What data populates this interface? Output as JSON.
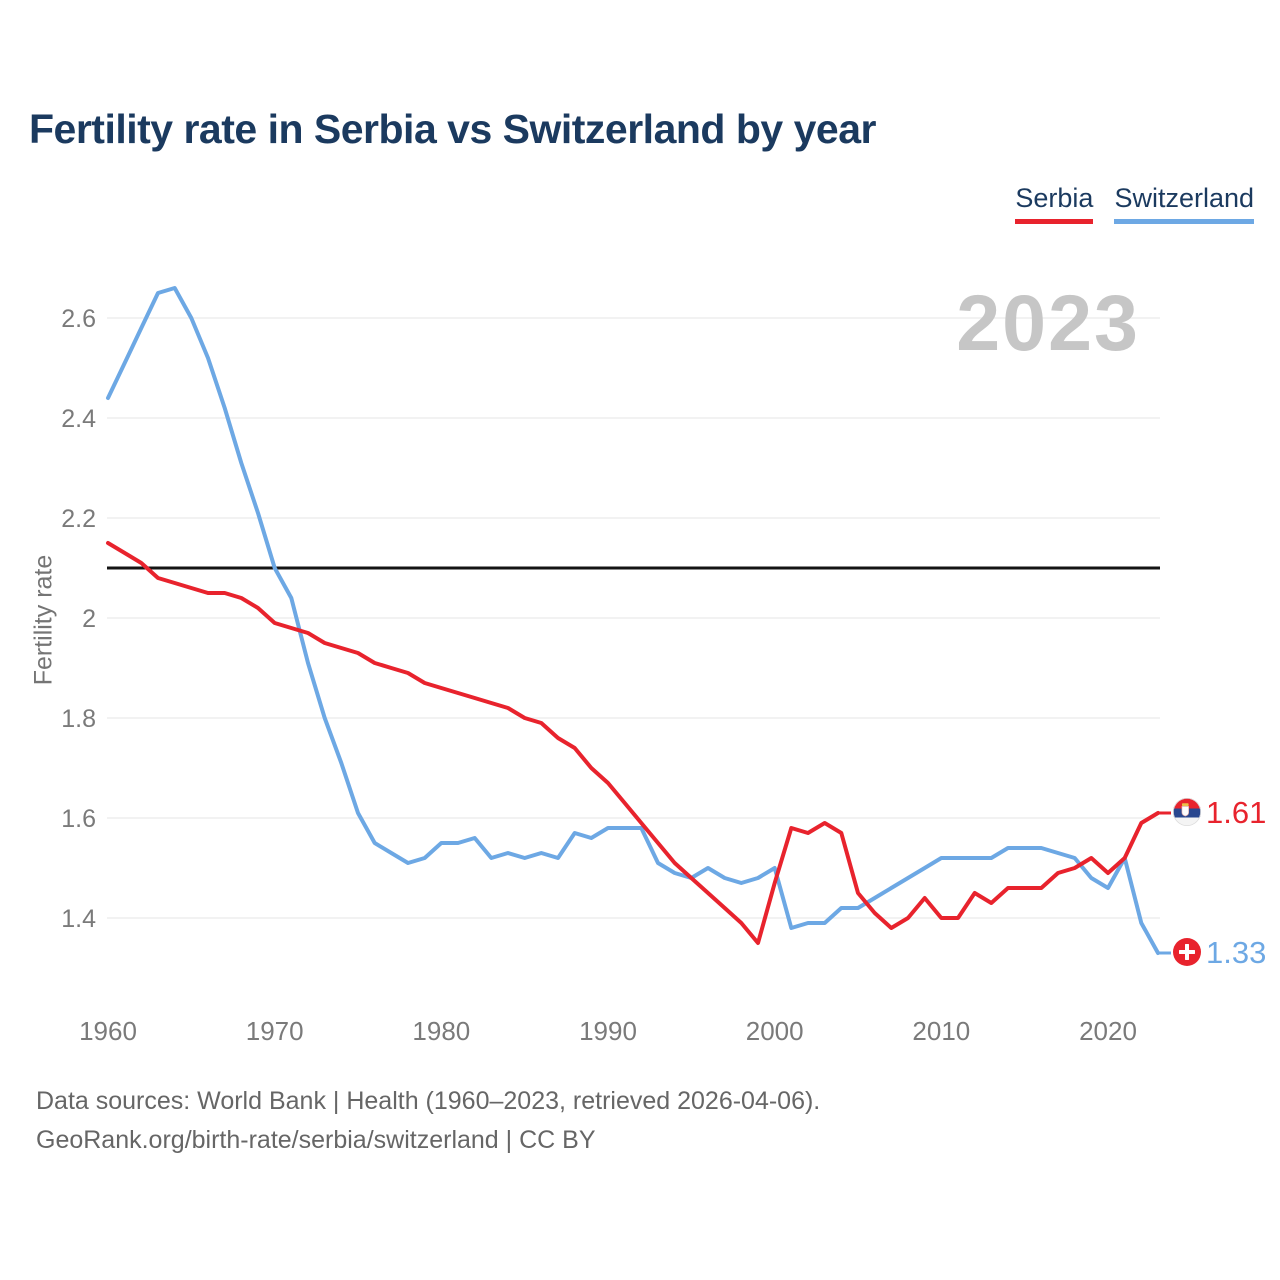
{
  "header": {
    "title": "Fertility rate in Serbia vs Switzerland by year"
  },
  "legend": {
    "items": [
      {
        "label": "Serbia"
      },
      {
        "label": "Switzerland"
      }
    ]
  },
  "watermark": "2023",
  "axes": {
    "y_label": "Fertility rate"
  },
  "end_labels": {
    "serbia": "1.61",
    "switzerland": "1.33"
  },
  "icons": {
    "serbia_flag": "serbia-flag-icon",
    "switzerland_flag": "switzerland-flag-icon"
  },
  "footer": {
    "line1": "Data sources: World Bank | Health (1960–2023, retrieved 2026-04-06).",
    "line2": "GeoRank.org/birth-rate/serbia/switzerland | CC BY"
  },
  "chart_data": {
    "type": "line",
    "title": "Fertility rate in Serbia vs Switzerland by year",
    "xlabel": "",
    "ylabel": "Fertility rate",
    "x_range": [
      1960,
      2023
    ],
    "ylim": [
      1.25,
      2.72
    ],
    "grid": true,
    "legend_position": "top-right",
    "y_ticks": [
      2.6,
      2.4,
      2.2,
      2,
      1.8,
      1.6,
      1.4
    ],
    "x_ticks": [
      1960,
      1970,
      1980,
      1990,
      2000,
      2010,
      2020
    ],
    "reference_line": {
      "value": 2.1,
      "color": "#141414"
    },
    "grid_color": "#ededed",
    "tick_color": "#7a7a7a",
    "x": [
      1960,
      1961,
      1962,
      1963,
      1964,
      1965,
      1966,
      1967,
      1968,
      1969,
      1970,
      1971,
      1972,
      1973,
      1974,
      1975,
      1976,
      1977,
      1978,
      1979,
      1980,
      1981,
      1982,
      1983,
      1984,
      1985,
      1986,
      1987,
      1988,
      1989,
      1990,
      1991,
      1992,
      1993,
      1994,
      1995,
      1996,
      1997,
      1998,
      1999,
      2000,
      2001,
      2002,
      2003,
      2004,
      2005,
      2006,
      2007,
      2008,
      2009,
      2010,
      2011,
      2012,
      2013,
      2014,
      2015,
      2016,
      2017,
      2018,
      2019,
      2020,
      2021,
      2022,
      2023
    ],
    "series": [
      {
        "name": "Serbia",
        "color": "#e8232d",
        "end_value_label": "1.61",
        "values": [
          2.15,
          2.13,
          2.11,
          2.08,
          2.07,
          2.06,
          2.05,
          2.05,
          2.04,
          2.02,
          1.99,
          1.98,
          1.97,
          1.95,
          1.94,
          1.93,
          1.91,
          1.9,
          1.89,
          1.87,
          1.86,
          1.85,
          1.84,
          1.83,
          1.82,
          1.8,
          1.79,
          1.76,
          1.74,
          1.7,
          1.67,
          1.63,
          1.59,
          1.55,
          1.51,
          1.48,
          1.45,
          1.42,
          1.39,
          1.35,
          1.47,
          1.58,
          1.57,
          1.59,
          1.57,
          1.45,
          1.41,
          1.38,
          1.4,
          1.44,
          1.4,
          1.4,
          1.45,
          1.43,
          1.46,
          1.46,
          1.46,
          1.49,
          1.5,
          1.52,
          1.49,
          1.52,
          1.59,
          1.61
        ]
      },
      {
        "name": "Switzerland",
        "color": "#6da8e4",
        "end_value_label": "1.33",
        "values": [
          2.44,
          2.51,
          2.58,
          2.65,
          2.66,
          2.6,
          2.52,
          2.42,
          2.31,
          2.21,
          2.1,
          2.04,
          1.91,
          1.8,
          1.71,
          1.61,
          1.55,
          1.53,
          1.51,
          1.52,
          1.55,
          1.55,
          1.56,
          1.52,
          1.53,
          1.52,
          1.53,
          1.52,
          1.57,
          1.56,
          1.58,
          1.58,
          1.58,
          1.51,
          1.49,
          1.48,
          1.5,
          1.48,
          1.47,
          1.48,
          1.5,
          1.38,
          1.39,
          1.39,
          1.42,
          1.42,
          1.44,
          1.46,
          1.48,
          1.5,
          1.52,
          1.52,
          1.52,
          1.52,
          1.54,
          1.54,
          1.54,
          1.53,
          1.52,
          1.48,
          1.46,
          1.52,
          1.39,
          1.33
        ]
      }
    ]
  }
}
